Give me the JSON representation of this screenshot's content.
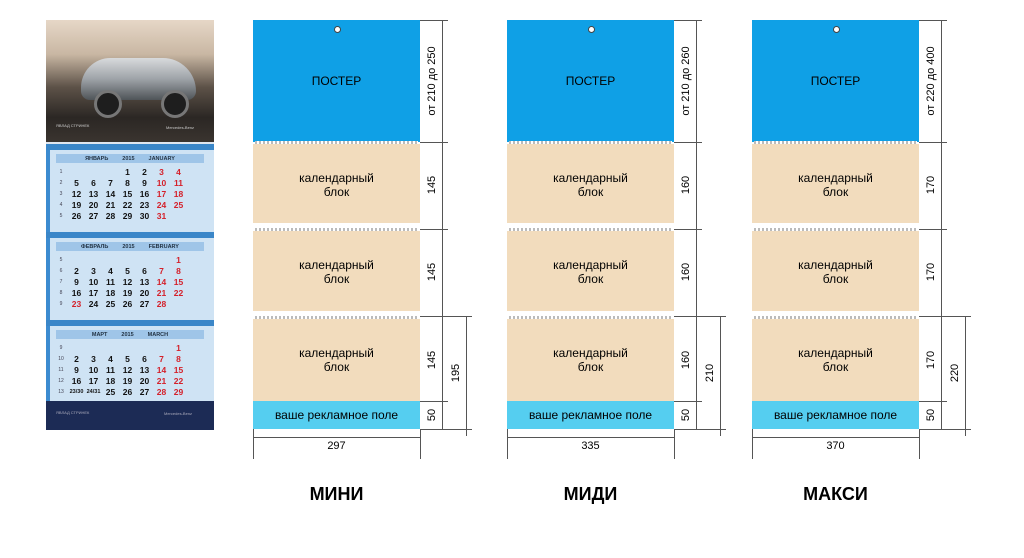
{
  "sample": {
    "brand_text": "Mercedes-Benz",
    "dealer_text": "ЯВЛАД СТРИНЕК",
    "months": [
      {
        "ru": "ЯНВАРЬ",
        "year": "2015",
        "en": "JANUARY",
        "weeks": [
          "1",
          "2",
          "3",
          "4",
          "5"
        ],
        "rows": [
          [
            "",
            "",
            "",
            "1",
            "2",
            "3",
            "4"
          ],
          [
            "5",
            "6",
            "7",
            "8",
            "9",
            "10",
            "11"
          ],
          [
            "12",
            "13",
            "14",
            "15",
            "16",
            "17",
            "18"
          ],
          [
            "19",
            "20",
            "21",
            "22",
            "23",
            "24",
            "25"
          ],
          [
            "26",
            "27",
            "28",
            "29",
            "30",
            "31",
            ""
          ]
        ]
      },
      {
        "ru": "ФЕВРАЛЬ",
        "year": "2015",
        "en": "FEBRUARY",
        "weeks": [
          "5",
          "6",
          "7",
          "8",
          "9"
        ],
        "rows": [
          [
            "",
            "",
            "",
            "",
            "",
            "",
            "1"
          ],
          [
            "2",
            "3",
            "4",
            "5",
            "6",
            "7",
            "8"
          ],
          [
            "9",
            "10",
            "11",
            "12",
            "13",
            "14",
            "15"
          ],
          [
            "16",
            "17",
            "18",
            "19",
            "20",
            "21",
            "22"
          ],
          [
            "23",
            "24",
            "25",
            "26",
            "27",
            "28",
            ""
          ]
        ]
      },
      {
        "ru": "МАРТ",
        "year": "2015",
        "en": "MARCH",
        "weeks": [
          "9",
          "10",
          "11",
          "12",
          "13"
        ],
        "rows": [
          [
            "",
            "",
            "",
            "",
            "",
            "",
            "1"
          ],
          [
            "2",
            "3",
            "4",
            "5",
            "6",
            "7",
            "8"
          ],
          [
            "9",
            "10",
            "11",
            "12",
            "13",
            "14",
            "15"
          ],
          [
            "16",
            "17",
            "18",
            "19",
            "20",
            "21",
            "22"
          ],
          [
            "23/30",
            "24/31",
            "25",
            "26",
            "27",
            "28",
            "29"
          ]
        ]
      }
    ]
  },
  "labels": {
    "poster": "ПОСТЕР",
    "block_line1": "календарный",
    "block_line2": "блок",
    "ad": "ваше рекламное поле"
  },
  "variants": [
    {
      "name": "МИНИ",
      "poster_height": "от 210 до 250",
      "block_height": "145",
      "ad_height": "50",
      "total_bottom": "195",
      "width": "297"
    },
    {
      "name": "МИДИ",
      "poster_height": "от 210 до 260",
      "block_height": "160",
      "ad_height": "50",
      "total_bottom": "210",
      "width": "335"
    },
    {
      "name": "МАКСИ",
      "poster_height": "от 220 до 400",
      "block_height": "170",
      "ad_height": "50",
      "total_bottom": "220",
      "width": "370"
    }
  ],
  "colors": {
    "poster": "#0fa0e6",
    "block": "#f2dcbd",
    "ad": "#55cef0",
    "red_day": "#d4202a"
  }
}
